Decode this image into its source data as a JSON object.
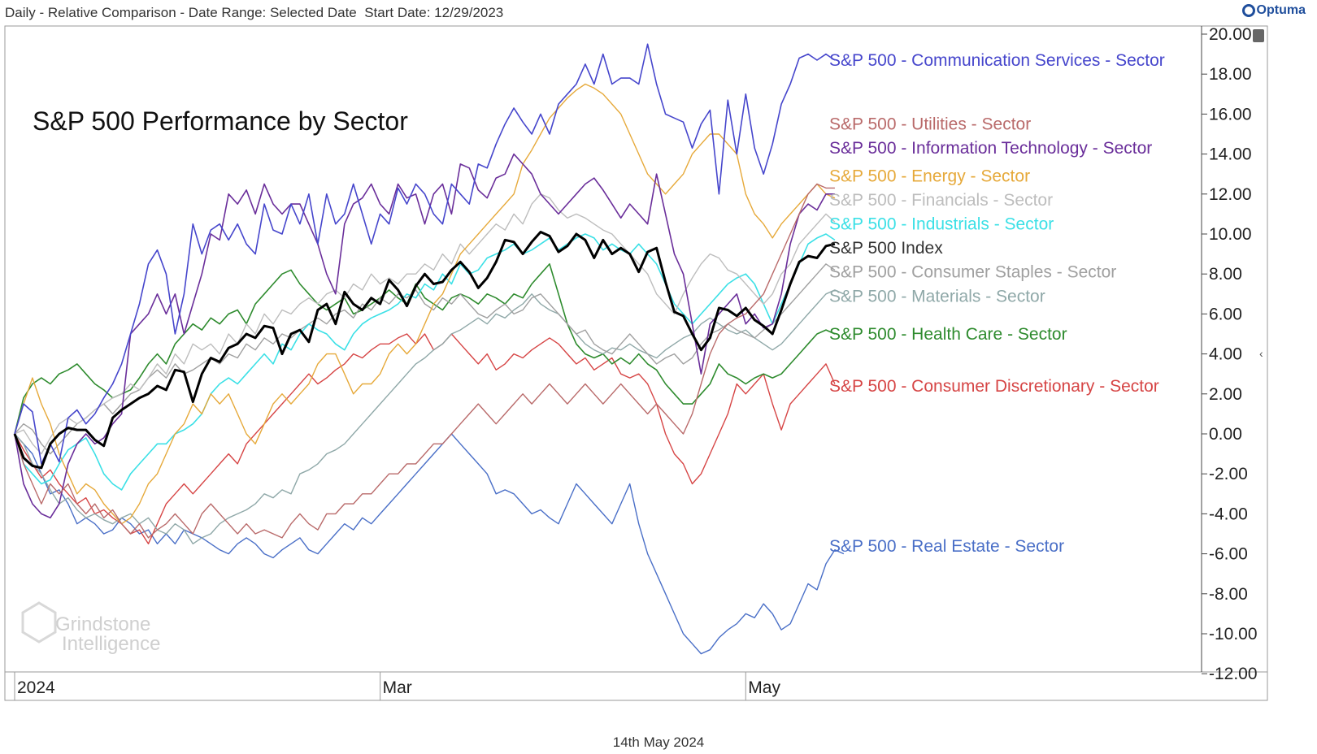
{
  "header": {
    "text": "Daily - Relative Comparison - Date Range: Selected Date  Start Date: 12/29/2023"
  },
  "logo": {
    "text": "Optuma",
    "icon": "optuma-logo-icon"
  },
  "footer": {
    "date": "14th May 2024"
  },
  "watermark": {
    "line1": "Grindstone",
    "line2": "Intelligence"
  },
  "chart_data": {
    "type": "line",
    "title": "S&P 500 Performance by Sector",
    "xlabel": "",
    "ylabel": "",
    "ylim": [
      -12,
      20
    ],
    "yticks": [
      "-12.00",
      "-10.00",
      "-8.00",
      "-6.00",
      "-4.00",
      "-2.00",
      "0.00",
      "2.00",
      "4.00",
      "6.00",
      "8.00",
      "10.00",
      "12.00",
      "14.00",
      "16.00",
      "18.00",
      "20.00"
    ],
    "xticks": [
      {
        "label": "2024",
        "x": 0
      },
      {
        "label": "Mar",
        "x": 41
      },
      {
        "label": "May",
        "x": 82
      }
    ],
    "x_range": [
      0,
      90
    ],
    "series": [
      {
        "name": "S&P 500 - Communication Services - Sector",
        "color": "#4646cc",
        "label_y": 18.7,
        "stroke": 1.6,
        "values": [
          0,
          1.5,
          1.1,
          -1.5,
          -0.5,
          -1.4,
          0.8,
          1.2,
          0.5,
          1,
          1.8,
          2.5,
          3.5,
          5,
          6.5,
          8.5,
          9.2,
          8,
          5,
          7,
          10.5,
          9,
          10.2,
          10.5,
          9.7,
          10.5,
          9.5,
          9,
          11.5,
          10.2,
          10,
          11.5,
          10.5,
          12,
          9.5,
          12,
          10.5,
          11,
          12.5,
          11,
          9.5,
          11,
          10.5,
          12.3,
          11.5,
          12.5,
          12,
          11,
          10.5,
          12.5,
          12,
          11.5,
          13.5,
          13.3,
          14.5,
          15.5,
          16.3,
          15.6,
          15,
          16,
          15,
          16.5,
          17,
          17.5,
          18.5,
          17.5,
          19,
          17.5,
          17.8,
          17.8,
          17.5,
          19.5,
          17.5,
          16,
          15.8,
          15.6,
          14.3,
          15.5,
          16.2,
          12,
          16.7,
          14,
          17,
          14.3,
          13,
          14.5,
          16.5,
          17.5,
          18.8,
          19,
          18.7,
          19,
          18.7
        ]
      },
      {
        "name": "S&P 500 - Utilities - Sector",
        "color": "#b96a6a",
        "label_y": 15.5,
        "stroke": 1.4,
        "values": [
          0,
          -1.5,
          -2.5,
          -3.5,
          -2.5,
          -3,
          -2.5,
          -3.5,
          -4,
          -3.5,
          -4.2,
          -3.8,
          -4.5,
          -5,
          -4.5,
          -5.2,
          -4.8,
          -4.5,
          -4,
          -4.5,
          -5,
          -4,
          -3.5,
          -4,
          -4.5,
          -5,
          -4.5,
          -5,
          -4.8,
          -5,
          -5.2,
          -4.5,
          -4,
          -4.5,
          -4.8,
          -4,
          -4,
          -3.5,
          -3.5,
          -3,
          -3,
          -2.5,
          -2,
          -2,
          -1.5,
          -1.5,
          -1,
          -0.5,
          -0.5,
          0,
          0.5,
          1,
          1.5,
          1,
          0.5,
          1,
          1.5,
          2,
          1.5,
          2,
          2.5,
          2,
          1.5,
          2,
          2.5,
          2,
          1.5,
          2,
          2.5,
          2,
          1.5,
          1,
          1.5,
          1,
          0.5,
          0,
          1,
          2.5,
          4,
          5,
          5.5,
          5.8,
          6,
          6.5,
          7,
          8,
          9,
          10,
          11,
          12,
          12.5,
          12.3,
          12.3
        ]
      },
      {
        "name": "S&P 500 - Information Technology - Sector",
        "color": "#6a2e9a",
        "label_y": 14.3,
        "stroke": 1.6,
        "values": [
          0,
          -2.5,
          -3.5,
          -4,
          -4.2,
          -3.5,
          -1.5,
          -0.5,
          0,
          -0.5,
          -0.2,
          0.5,
          1,
          5,
          5.5,
          6,
          7,
          6,
          7,
          5,
          6.5,
          8,
          10,
          9.7,
          12,
          11.5,
          12.2,
          11,
          12.5,
          11.5,
          11,
          11.5,
          11.5,
          10.5,
          9.5,
          8,
          7,
          10.5,
          11.5,
          11.8,
          12.5,
          11.5,
          11,
          12.5,
          11.8,
          12,
          10.5,
          12,
          12.5,
          11,
          13.5,
          13.3,
          12.2,
          11.8,
          12.8,
          13,
          14,
          13.5,
          13,
          12,
          11.5,
          11,
          11.5,
          12,
          12.5,
          12.8,
          12.2,
          11.5,
          10.8,
          11.5,
          11,
          10.5,
          13,
          11,
          9,
          8,
          5.5,
          3,
          5.5,
          6,
          6.5,
          7,
          5.5,
          6,
          5.3,
          5.5,
          7,
          9.5,
          11,
          11.5,
          11.2,
          12,
          12
        ]
      },
      {
        "name": "S&P 500 - Energy - Sector",
        "color": "#e6a93a",
        "label_y": 12.9,
        "stroke": 1.4,
        "values": [
          0,
          1.5,
          2.8,
          1.5,
          0.5,
          -1,
          -2,
          -3,
          -2.5,
          -2.8,
          -3.5,
          -4,
          -4.5,
          -4.2,
          -3.5,
          -2.5,
          -2,
          -1,
          0,
          0.5,
          1.5,
          1,
          2,
          1.5,
          2,
          1,
          0,
          -0.5,
          0.5,
          1.5,
          2,
          1.5,
          2,
          2.5,
          3.5,
          4,
          4,
          3,
          2,
          2.5,
          2.5,
          3,
          4,
          4.5,
          4,
          4.5,
          5.5,
          6.5,
          7,
          8,
          9,
          9.5,
          10,
          10.5,
          11,
          11.5,
          12,
          13.5,
          14.2,
          15,
          15.8,
          16.3,
          16.8,
          17.2,
          17.5,
          17.3,
          17,
          16.5,
          16,
          15,
          14,
          13,
          12.5,
          12,
          12.5,
          13,
          14,
          14.5,
          15,
          15,
          14.5,
          14,
          12,
          11,
          10.5,
          9.8,
          10.5,
          11,
          11.5,
          12,
          12.5,
          12,
          11.8
        ]
      },
      {
        "name": "S&P 500 - Financials - Sector",
        "color": "#bdbdbd",
        "label_y": 11.7,
        "stroke": 1.4,
        "values": [
          0,
          0.2,
          -0.5,
          -1,
          -0.2,
          0.5,
          0.8,
          0.5,
          0.8,
          1.2,
          1.5,
          1.8,
          2,
          2.5,
          2.2,
          2.8,
          3.5,
          3,
          4,
          3.5,
          4.5,
          4.2,
          4.5,
          4,
          5,
          4.5,
          5.5,
          5,
          6,
          5.5,
          6.2,
          6,
          6.5,
          6.8,
          6.5,
          7,
          7.2,
          6.8,
          7.5,
          7.2,
          8,
          7.5,
          7.8,
          7.5,
          8,
          8,
          8.5,
          8.2,
          9,
          8.5,
          9.5,
          9,
          9.5,
          10,
          10.5,
          10.2,
          11,
          10.5,
          11.5,
          12,
          11.8,
          11.2,
          10.8,
          11,
          10.8,
          10.5,
          10.2,
          10,
          9.5,
          9,
          8.5,
          8,
          7,
          6.5,
          6,
          7,
          7.8,
          8.5,
          9,
          8.8,
          8.2,
          8,
          7.5,
          7,
          6.5,
          7,
          8,
          8.5,
          9.5,
          10,
          10.5,
          11,
          10.6
        ]
      },
      {
        "name": "S&P 500 - Industrials - Sector",
        "color": "#3be0e6",
        "label_y": 10.5,
        "stroke": 1.6,
        "values": [
          0,
          -1.5,
          -2,
          -2.5,
          -2.3,
          -1.5,
          -0.8,
          -0.5,
          -0.2,
          -1,
          -2,
          -2.5,
          -2.8,
          -2,
          -1.5,
          -1,
          -0.5,
          -0.5,
          0,
          0.2,
          0.5,
          1,
          2,
          2.5,
          2.8,
          2.5,
          3,
          3.5,
          4,
          3.5,
          4.5,
          4.2,
          5,
          5.5,
          5.2,
          5,
          4.5,
          4.2,
          5,
          5.5,
          5.8,
          6,
          6.2,
          6.5,
          7,
          6.8,
          7.5,
          7.2,
          8,
          7.5,
          8.5,
          8,
          8.2,
          8.8,
          9,
          9.2,
          9.5,
          9,
          9.2,
          9.5,
          9.8,
          9.2,
          9.5,
          9.8,
          10,
          9.8,
          9.2,
          9.5,
          9.2,
          9,
          9.5,
          9,
          8.5,
          7.5,
          6.5,
          6,
          5.5,
          6,
          6.5,
          7,
          7.5,
          7.8,
          8,
          7.5,
          6.5,
          5.5,
          6.5,
          7.5,
          8.5,
          9.5,
          9.8,
          10,
          9.7
        ]
      },
      {
        "name": "S&P 500 Index",
        "color": "#000000",
        "label_y": 9.3,
        "stroke": 3,
        "values": [
          0,
          -1.2,
          -1.6,
          -1.7,
          -0.5,
          0,
          0.3,
          0.2,
          0.2,
          -0.3,
          -0.6,
          0.8,
          1.2,
          1.5,
          1.8,
          2,
          2.4,
          2.2,
          3.2,
          3.1,
          1.6,
          3,
          3.8,
          3.6,
          4.3,
          4.5,
          5,
          4.8,
          5.4,
          5.3,
          4,
          5,
          5.2,
          4.6,
          6.2,
          6.5,
          5.5,
          7.1,
          6.5,
          6.2,
          6.8,
          6.5,
          7.7,
          7.2,
          6.4,
          7.4,
          8,
          7.5,
          7.6,
          8.2,
          8.6,
          8.1,
          7.3,
          7.8,
          8.6,
          9.7,
          9.6,
          9,
          9.6,
          10.1,
          9.9,
          9.1,
          9.4,
          10,
          9.7,
          8.8,
          9.7,
          9,
          9.3,
          9,
          8.1,
          9.1,
          9.3,
          7.6,
          6.1,
          5.9,
          5,
          4.2,
          4.8,
          6.3,
          6.2,
          5.9,
          6.3,
          5.7,
          5.4,
          5,
          6.2,
          7.5,
          8.6,
          8.9,
          8.8,
          9.4,
          9.5
        ]
      },
      {
        "name": "S&P 500 - Consumer Staples - Sector",
        "color": "#a0a0a0",
        "label_y": 8.1,
        "stroke": 1.4,
        "values": [
          0,
          0.5,
          0.2,
          -0.5,
          -1,
          -0.5,
          0,
          0.5,
          0.8,
          1.2,
          1.5,
          1,
          1.5,
          2,
          2.2,
          2.8,
          3.2,
          2.8,
          3.5,
          3,
          3.2,
          3.5,
          3.8,
          3.5,
          4,
          3.8,
          4.5,
          4.2,
          4.8,
          4.5,
          5,
          4.8,
          5.2,
          5.5,
          5.8,
          5.5,
          6,
          6.2,
          5.8,
          6.5,
          6.2,
          6.8,
          6.5,
          7,
          6.8,
          7.2,
          6.5,
          6.2,
          6.8,
          6.5,
          7,
          6.5,
          6,
          5.8,
          6.2,
          6.5,
          6,
          6.2,
          6.8,
          7,
          6.5,
          6,
          5.5,
          5,
          5.2,
          4.5,
          4.2,
          4,
          4.5,
          5,
          4.5,
          4,
          3.5,
          3.8,
          4,
          3.5,
          3.8,
          4.5,
          5,
          5.2,
          5.5,
          5.2,
          5,
          4.8,
          5.2,
          5.5,
          6,
          6.5,
          7,
          7.5,
          8,
          8.5,
          8.2
        ]
      },
      {
        "name": "S&P 500 - Materials - Sector",
        "color": "#8fa8a8",
        "label_y": 6.9,
        "stroke": 1.4,
        "values": [
          0,
          -0.5,
          -1.5,
          -2,
          -2.8,
          -3.5,
          -3.2,
          -3.8,
          -4.2,
          -4,
          -4.3,
          -4.5,
          -4.2,
          -4,
          -4.5,
          -4.2,
          -4.8,
          -5,
          -4.5,
          -4.8,
          -5.5,
          -5.2,
          -5,
          -4.5,
          -4.2,
          -4,
          -3.8,
          -3.5,
          -3,
          -3.2,
          -2.8,
          -3,
          -2,
          -1.8,
          -1.5,
          -1,
          -0.8,
          -0.5,
          0,
          0.5,
          1,
          1.5,
          2,
          2.5,
          3,
          3.5,
          3.8,
          4.2,
          4.5,
          5,
          5.2,
          5.5,
          5.8,
          5.5,
          6,
          5.8,
          6.2,
          6.5,
          7,
          6.5,
          6.2,
          6,
          5.5,
          5,
          4.5,
          4.2,
          4,
          4.3,
          4.2,
          4.5,
          4.2,
          4,
          3.8,
          4.2,
          4.5,
          4.8,
          5,
          5.5,
          5.8,
          5.5,
          5.2,
          5,
          5.2,
          4.8,
          4.5,
          4.2,
          4.5,
          5,
          5.5,
          6,
          6.5,
          7,
          7.2,
          7
        ]
      },
      {
        "name": "S&P 500 - Health Care - Sector",
        "color": "#2e8b2e",
        "label_y": 5,
        "stroke": 1.6,
        "values": [
          0,
          1.8,
          2.5,
          2.8,
          2.5,
          3,
          3.2,
          3.5,
          3,
          2.5,
          2.2,
          1.8,
          2,
          2.2,
          2.8,
          3.5,
          4,
          3.5,
          4.5,
          5,
          5.5,
          5.2,
          5.8,
          5.5,
          6,
          6.2,
          5.5,
          6.5,
          7,
          7.5,
          8,
          8.2,
          7.5,
          7,
          6.5,
          6.2,
          6.5,
          6.8,
          6,
          6.2,
          6.5,
          6.8,
          7.2,
          6.8,
          6.5,
          7.5,
          6.8,
          6.5,
          6.2,
          6.8,
          7,
          6.8,
          6.5,
          7,
          6.8,
          6.5,
          7,
          6.8,
          7.5,
          8,
          8.5,
          7,
          5.5,
          4.5,
          4,
          3.8,
          4,
          3.5,
          3.8,
          3.5,
          4,
          3.5,
          3.2,
          2.5,
          2,
          1.5,
          1.5,
          2,
          2.5,
          3.5,
          3,
          2.8,
          2.5,
          2.8,
          3,
          2.8,
          3,
          3.5,
          4,
          4.5,
          5,
          5.2,
          5
        ]
      },
      {
        "name": "S&P 500 - Consumer Discretionary - Sector",
        "color": "#d64545",
        "label_y": 2.4,
        "stroke": 1.4,
        "values": [
          0,
          -0.8,
          -1.5,
          -2.2,
          -1.8,
          -2.5,
          -3,
          -3.5,
          -3.2,
          -4,
          -3.8,
          -4.2,
          -4.5,
          -5,
          -4.8,
          -5.5,
          -4.5,
          -3.5,
          -3,
          -2.5,
          -3,
          -2.5,
          -2,
          -1.5,
          -1,
          -1.5,
          -0.5,
          0,
          0.5,
          1,
          1.5,
          2,
          2.5,
          3,
          2.5,
          2.8,
          3.2,
          3.5,
          4,
          3.8,
          4.2,
          4.5,
          4.5,
          4.8,
          5,
          4.5,
          5,
          4.2,
          4.5,
          5,
          4.5,
          4,
          3.5,
          4,
          3.2,
          3.5,
          4,
          3.8,
          4.2,
          4.5,
          4.8,
          4.5,
          4,
          3.5,
          3.8,
          3.2,
          3.5,
          3.8,
          3,
          2.8,
          3,
          2.5,
          1.5,
          0,
          -1,
          -1.5,
          -2.5,
          -2,
          -1,
          0,
          1,
          2.5,
          2,
          2.5,
          3,
          1.5,
          0.2,
          1.5,
          2,
          2.5,
          3,
          3.5,
          2.5
        ]
      },
      {
        "name": "S&P 500 - Real Estate - Sector",
        "color": "#4a6fc7",
        "label_y": -5.6,
        "stroke": 1.4,
        "values": [
          0,
          -0.5,
          -1,
          -2,
          -3,
          -2.8,
          -3.5,
          -4.5,
          -4.2,
          -4.5,
          -5,
          -4.8,
          -4.2,
          -4.5,
          -5,
          -4.8,
          -5.5,
          -5,
          -5.5,
          -4.8,
          -5,
          -5.2,
          -5.5,
          -5.8,
          -6,
          -5.5,
          -5.2,
          -5.5,
          -6,
          -6.2,
          -5.8,
          -5.5,
          -5.2,
          -5.8,
          -6,
          -5.5,
          -5,
          -4.5,
          -4.8,
          -4.2,
          -4.5,
          -4,
          -3.5,
          -3,
          -2.5,
          -2,
          -1.5,
          -1,
          -0.5,
          0,
          -0.5,
          -1,
          -1.5,
          -2,
          -3,
          -2.8,
          -3,
          -3.5,
          -4,
          -3.8,
          -4.2,
          -4.5,
          -3.5,
          -2.5,
          -3,
          -3.5,
          -4,
          -4.5,
          -3.5,
          -2.5,
          -4.5,
          -6,
          -7,
          -8,
          -9,
          -10,
          -10.5,
          -11,
          -10.8,
          -10.2,
          -9.8,
          -9.5,
          -9,
          -9.2,
          -8.5,
          -9,
          -9.8,
          -9.5,
          -8.5,
          -7.5,
          -7.8,
          -6.5,
          -5.8,
          -6
        ]
      }
    ]
  }
}
